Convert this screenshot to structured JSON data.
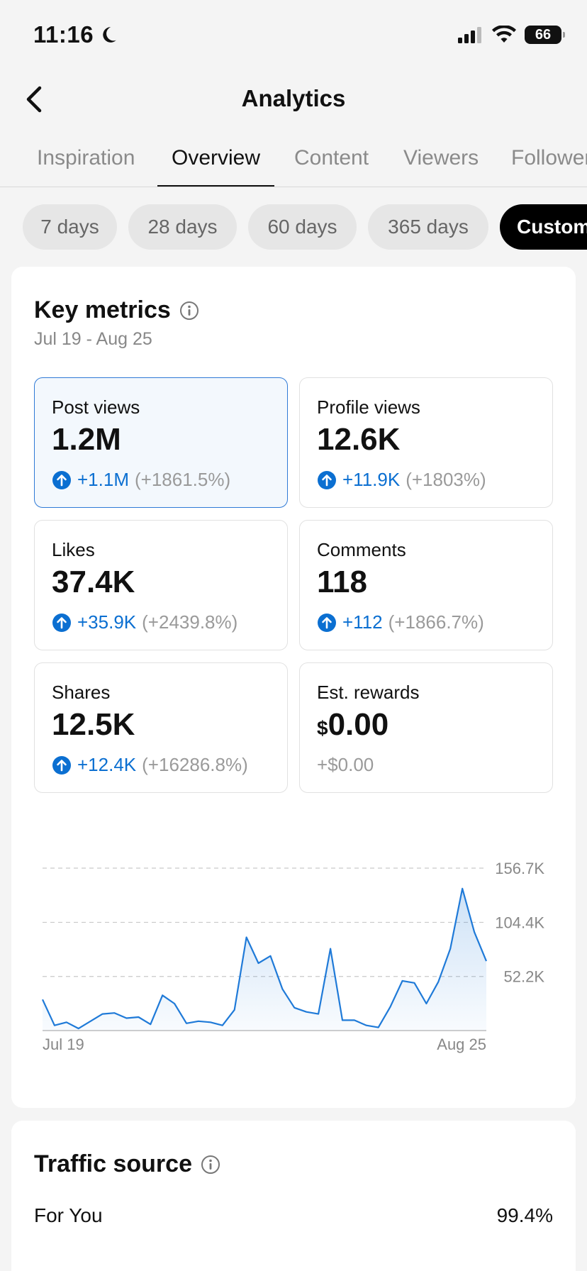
{
  "status_bar": {
    "time": "11:16",
    "battery": "66"
  },
  "header": {
    "title": "Analytics"
  },
  "tabs": [
    {
      "label": "Inspiration",
      "active": false
    },
    {
      "label": "Overview",
      "active": true
    },
    {
      "label": "Content",
      "active": false
    },
    {
      "label": "Viewers",
      "active": false
    },
    {
      "label": "Followers",
      "active": false
    }
  ],
  "ranges": [
    {
      "label": "7 days"
    },
    {
      "label": "28 days"
    },
    {
      "label": "60 days"
    },
    {
      "label": "365 days"
    },
    {
      "label": "Custom",
      "active": true
    }
  ],
  "key_metrics": {
    "title": "Key metrics",
    "date_range": "Jul 19 - Aug 25",
    "metrics": [
      {
        "label": "Post views",
        "value": "1.2M",
        "delta": "+1.1M",
        "pct": "(+1861.5%)",
        "selected": true
      },
      {
        "label": "Profile views",
        "value": "12.6K",
        "delta": "+11.9K",
        "pct": "(+1803%)"
      },
      {
        "label": "Likes",
        "value": "37.4K",
        "delta": "+35.9K",
        "pct": "(+2439.8%)"
      },
      {
        "label": "Comments",
        "value": "118",
        "delta": "+112",
        "pct": "(+1866.7%)"
      },
      {
        "label": "Shares",
        "value": "12.5K",
        "delta": "+12.4K",
        "pct": "(+16286.8%)"
      },
      {
        "label": "Est. rewards",
        "currency": "$",
        "value": "0.00",
        "delta": "+$0.00"
      }
    ]
  },
  "chart_data": {
    "type": "area",
    "y_ticks": [
      "156.7K",
      "104.4K",
      "52.2K"
    ],
    "y_tick_values": [
      156.7,
      104.4,
      52.2
    ],
    "ylim": [
      0,
      156.7
    ],
    "x_tick_labels": [
      "Jul 19",
      "Aug 25"
    ],
    "x": [
      "Jul 19",
      "Jul 20",
      "Jul 21",
      "Jul 22",
      "Jul 23",
      "Jul 24",
      "Jul 25",
      "Jul 26",
      "Jul 27",
      "Jul 28",
      "Jul 29",
      "Jul 30",
      "Jul 31",
      "Aug 1",
      "Aug 2",
      "Aug 3",
      "Aug 4",
      "Aug 5",
      "Aug 6",
      "Aug 7",
      "Aug 8",
      "Aug 9",
      "Aug 10",
      "Aug 11",
      "Aug 12",
      "Aug 13",
      "Aug 14",
      "Aug 15",
      "Aug 16",
      "Aug 17",
      "Aug 18",
      "Aug 19",
      "Aug 20",
      "Aug 21",
      "Aug 22",
      "Aug 23",
      "Aug 24",
      "Aug 25"
    ],
    "values": [
      30,
      5,
      8,
      2,
      9,
      16,
      17,
      12,
      13,
      6,
      34,
      26,
      7,
      9,
      8,
      5,
      20,
      90,
      65,
      72,
      40,
      22,
      18,
      16,
      79,
      10,
      10,
      5,
      3,
      23,
      48,
      46,
      26,
      47,
      79,
      137,
      95,
      67
    ],
    "series": [
      {
        "name": "Post views"
      }
    ],
    "grid": true,
    "color": "#1f7ad8"
  },
  "traffic_source": {
    "title": "Traffic source",
    "rows": [
      {
        "label": "For You",
        "value": "99.4%"
      }
    ]
  }
}
